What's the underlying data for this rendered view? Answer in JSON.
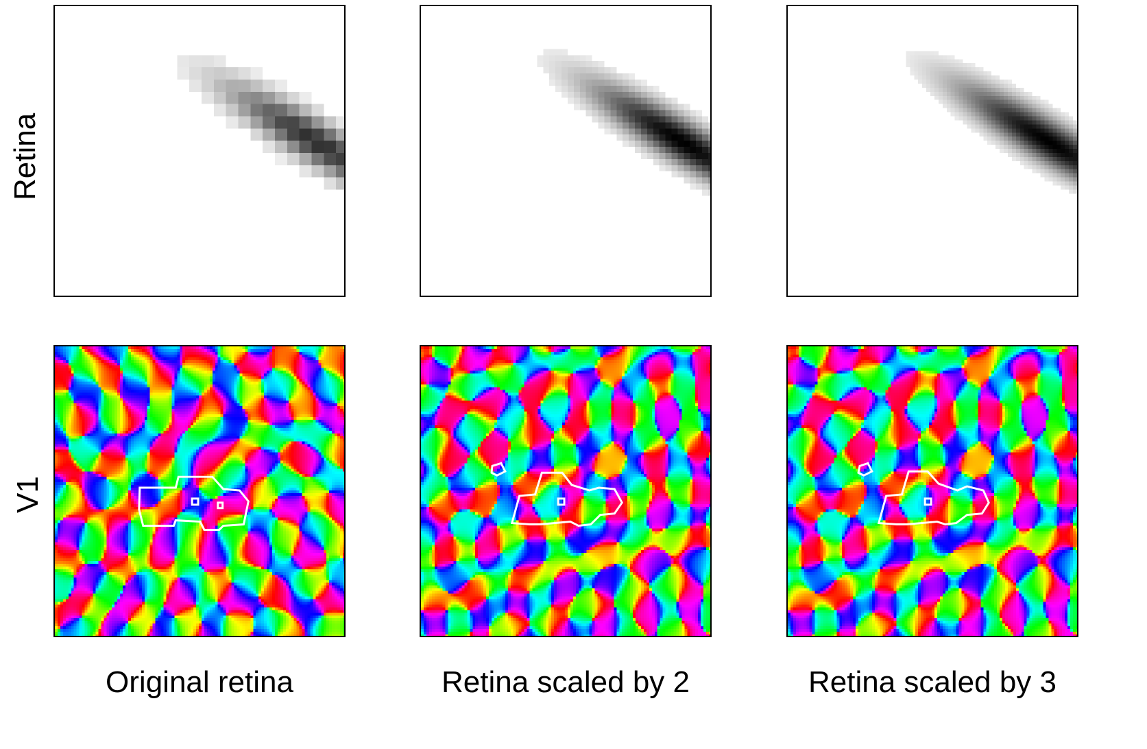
{
  "rows": [
    {
      "label": "Retina"
    },
    {
      "label": "V1"
    }
  ],
  "columns": [
    {
      "label": "Original retina",
      "retina_scale": 1
    },
    {
      "label": "Retina scaled by 2",
      "retina_scale": 2
    },
    {
      "label": "Retina scaled by 3",
      "retina_scale": 3
    }
  ],
  "colors": {
    "frame": "#000000",
    "outline": "#ffffff",
    "stimulus": "#000000"
  }
}
